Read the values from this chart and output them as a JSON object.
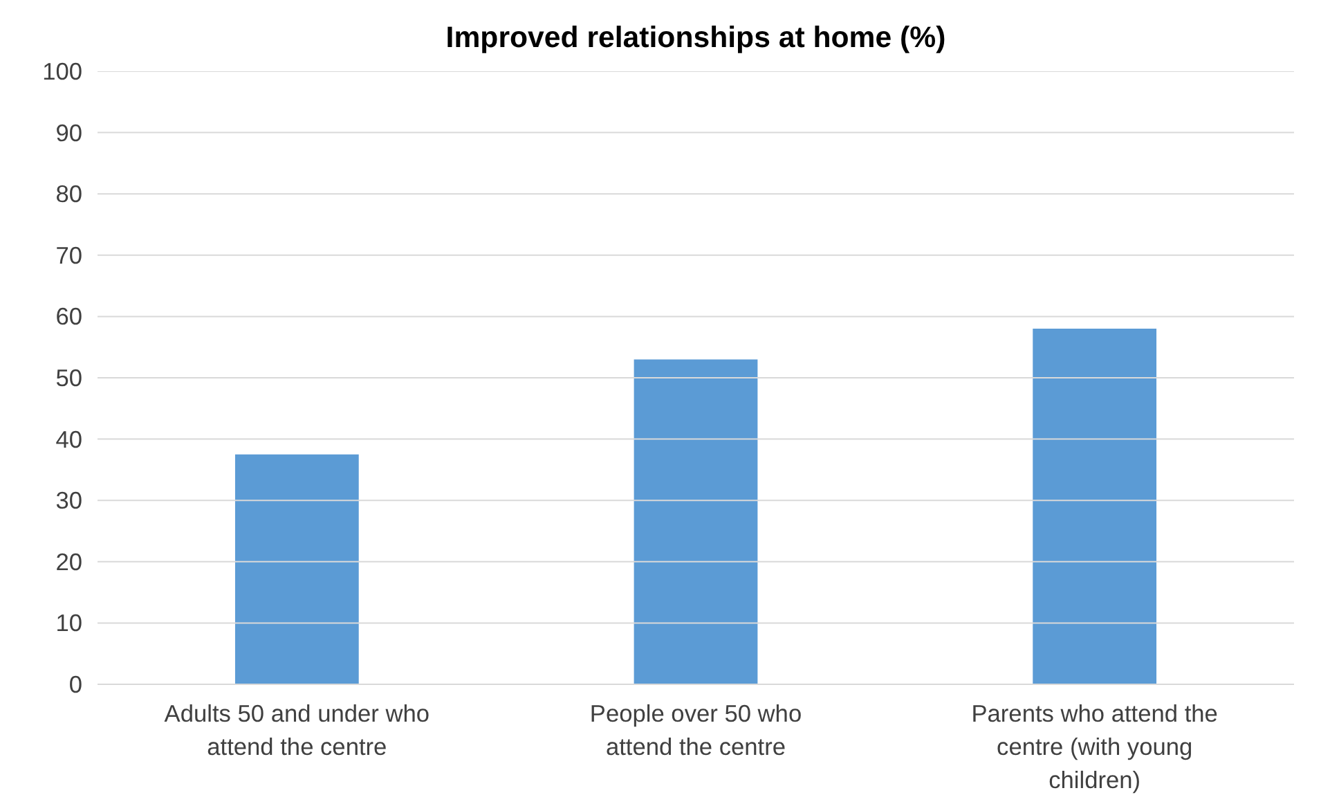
{
  "chart_data": {
    "type": "bar",
    "title": "Improved relationships at home (%)",
    "categories": [
      "Adults 50 and under who attend the centre",
      "People over 50 who attend the centre",
      "Parents who attend the centre (with young children)"
    ],
    "values": [
      37.5,
      53,
      58
    ],
    "color": "#5b9bd5",
    "ylim": [
      0,
      100
    ],
    "yticks": [
      0,
      10,
      20,
      30,
      40,
      50,
      60,
      70,
      80,
      90,
      100
    ],
    "grid": "y"
  }
}
